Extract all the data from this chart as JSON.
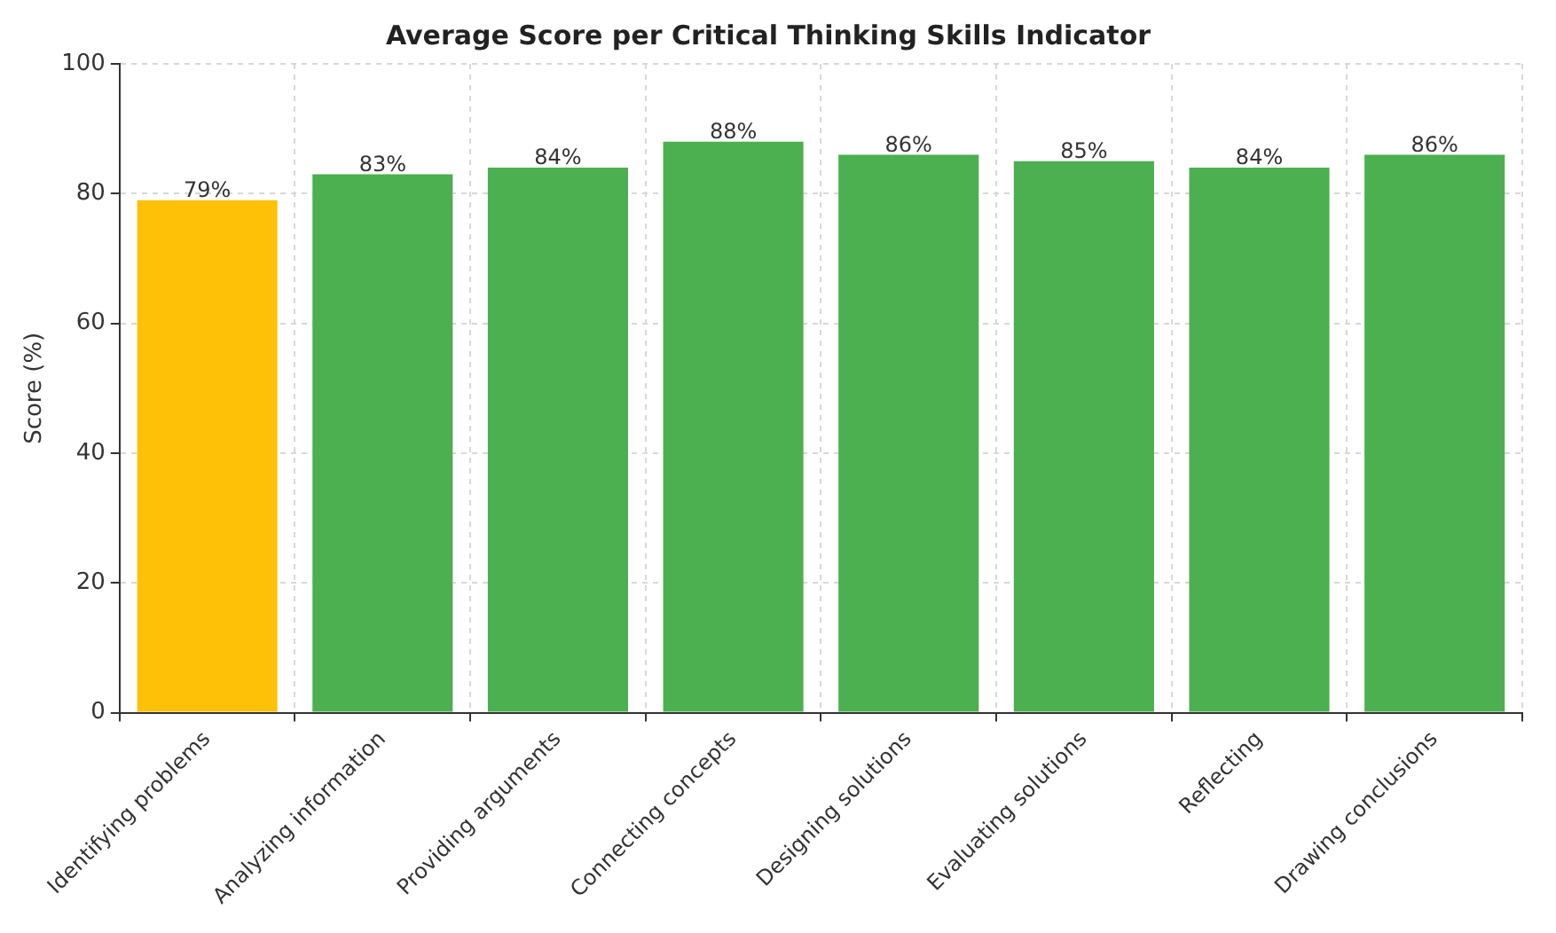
{
  "chart_data": {
    "type": "bar",
    "title": "Average Score per Critical Thinking Skills Indicator",
    "ylabel": "Score (%)",
    "categories": [
      "Identifying problems",
      "Analyzing information",
      "Providing arguments",
      "Connecting concepts",
      "Designing solutions",
      "Evaluating solutions",
      "Reflecting",
      "Drawing conclusions"
    ],
    "values": [
      79,
      83,
      84,
      88,
      86,
      85,
      84,
      86
    ],
    "value_labels": [
      "79%",
      "83%",
      "84%",
      "88%",
      "86%",
      "85%",
      "84%",
      "86%"
    ],
    "colors": [
      "#ffc107",
      "#4caf50",
      "#4caf50",
      "#4caf50",
      "#4caf50",
      "#4caf50",
      "#4caf50",
      "#4caf50"
    ],
    "ylim": [
      0,
      100
    ],
    "yticks": [
      0,
      20,
      40,
      60,
      80,
      100
    ],
    "grid": true,
    "legend": false
  }
}
